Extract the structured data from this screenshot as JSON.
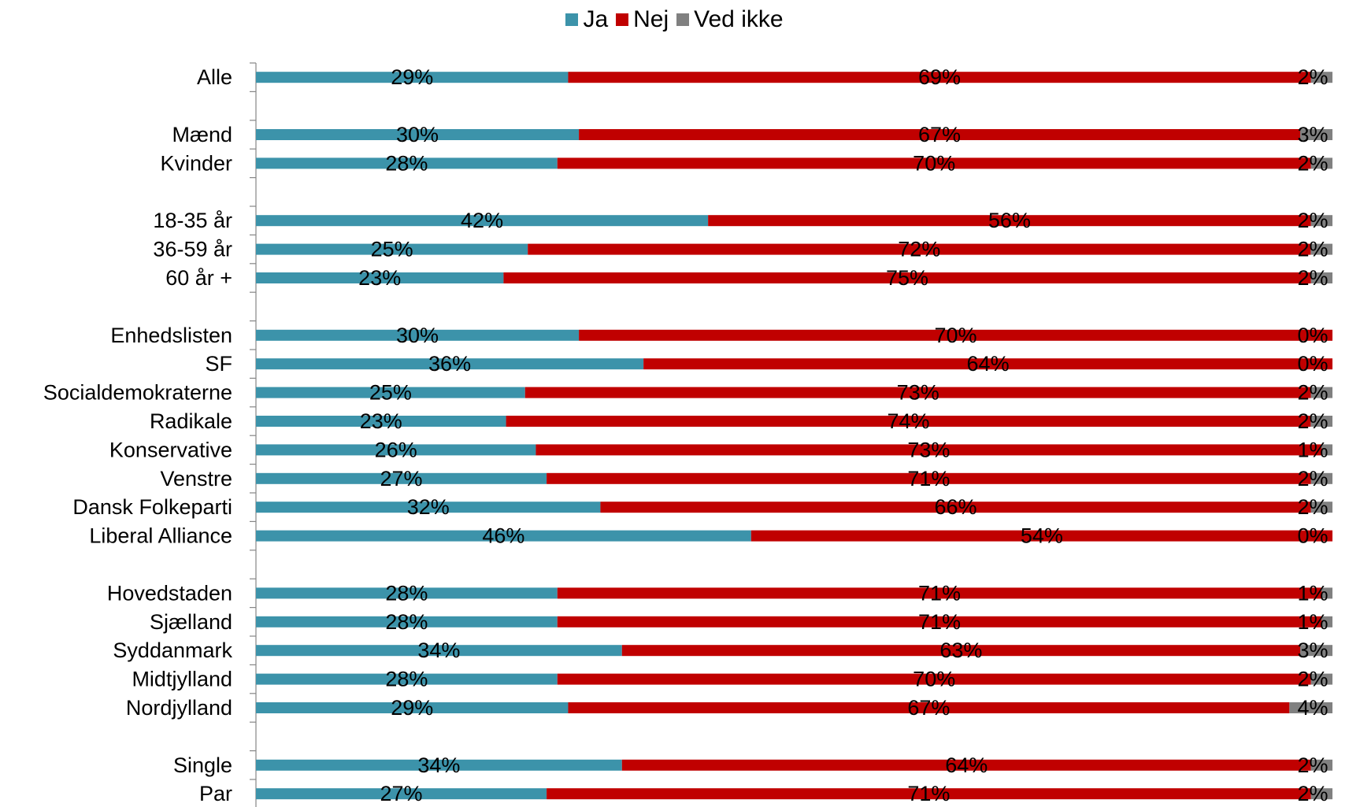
{
  "colors": {
    "ja": "#3c93aa",
    "nej": "#c00000",
    "ved_ikke": "#808080",
    "axis": "#868686"
  },
  "legend": [
    {
      "label": "Ja",
      "key": "ja"
    },
    {
      "label": "Nej",
      "key": "nej"
    },
    {
      "label": "Ved ikke",
      "key": "ved_ikke"
    }
  ],
  "chart_data": {
    "type": "bar",
    "orientation": "horizontal",
    "stacked": "percent",
    "legend_position": "top",
    "grid": false,
    "xlim": [
      0,
      100
    ],
    "series": [
      {
        "name": "Ja",
        "values": [
          29,
          30,
          28,
          42,
          25,
          23,
          30,
          36,
          25,
          23,
          26,
          27,
          32,
          46,
          28,
          28,
          34,
          28,
          29,
          34,
          27
        ]
      },
      {
        "name": "Nej",
        "values": [
          69,
          67,
          70,
          56,
          72,
          75,
          70,
          64,
          73,
          74,
          73,
          71,
          66,
          54,
          71,
          71,
          63,
          70,
          67,
          64,
          71
        ]
      },
      {
        "name": "Ved ikke",
        "values": [
          2,
          3,
          2,
          2,
          2,
          2,
          0,
          0,
          2,
          2,
          1,
          2,
          2,
          0,
          1,
          1,
          3,
          2,
          4,
          2,
          2
        ]
      }
    ],
    "groups": [
      {
        "categories": [
          "Alle"
        ],
        "rows": [
          0
        ]
      },
      {
        "categories": [
          "Mænd",
          "Kvinder"
        ],
        "rows": [
          1,
          2
        ]
      },
      {
        "categories": [
          "18-35 år",
          "36-59 år",
          "60 år +"
        ],
        "rows": [
          3,
          4,
          5
        ]
      },
      {
        "categories": [
          "Enhedslisten",
          "SF",
          "Socialdemokraterne",
          "Radikale",
          "Konservative",
          "Venstre",
          "Dansk Folkeparti",
          "Liberal Alliance"
        ],
        "rows": [
          6,
          7,
          8,
          9,
          10,
          11,
          12,
          13
        ]
      },
      {
        "categories": [
          "Hovedstaden",
          "Sjælland",
          "Syddanmark",
          "Midtjylland",
          "Nordjylland"
        ],
        "rows": [
          14,
          15,
          16,
          17,
          18
        ]
      },
      {
        "categories": [
          "Single",
          "Par"
        ],
        "rows": [
          19,
          20
        ]
      }
    ],
    "categories": [
      "Alle",
      "Mænd",
      "Kvinder",
      "18-35 år",
      "36-59 år",
      "60 år +",
      "Enhedslisten",
      "SF",
      "Socialdemokraterne",
      "Radikale",
      "Konservative",
      "Venstre",
      "Dansk Folkeparti",
      "Liberal Alliance",
      "Hovedstaden",
      "Sjælland",
      "Syddanmark",
      "Midtjylland",
      "Nordjylland",
      "Single",
      "Par"
    ],
    "data_labels": {
      "ja": [
        "29%",
        "30%",
        "28%",
        "42%",
        "25%",
        "23%",
        "30%",
        "36%",
        "25%",
        "23%",
        "26%",
        "27%",
        "32%",
        "46%",
        "28%",
        "28%",
        "34%",
        "28%",
        "29%",
        "34%",
        "27%"
      ],
      "nej": [
        "69%",
        "67%",
        "70%",
        "56%",
        "72%",
        "75%",
        "70%",
        "64%",
        "73%",
        "74%",
        "73%",
        "71%",
        "66%",
        "54%",
        "71%",
        "71%",
        "63%",
        "70%",
        "67%",
        "64%",
        "71%"
      ],
      "ved_ikke": [
        "2%",
        "3%",
        "2%",
        "2%",
        "2%",
        "2%",
        "0%",
        "0%",
        "2%",
        "2%",
        "1%",
        "2%",
        "2%",
        "0%",
        "1%",
        "1%",
        "3%",
        "2%",
        "4%",
        "2%",
        "2%"
      ]
    }
  }
}
